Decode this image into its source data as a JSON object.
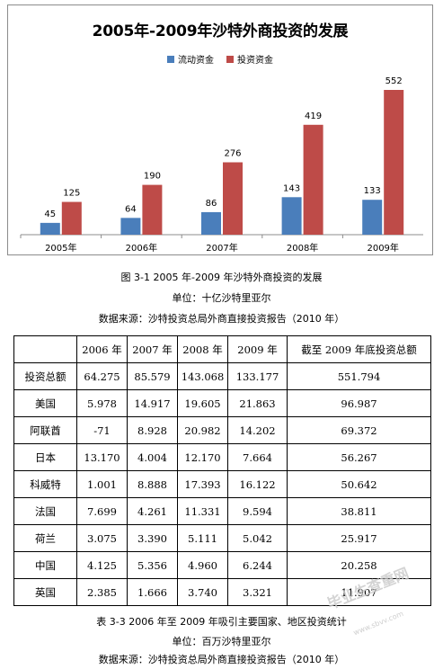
{
  "chart_data": {
    "type": "bar",
    "title": "2005年-2009年沙特外商投资的发展",
    "categories": [
      "2005年",
      "2006年",
      "2007年",
      "2008年",
      "2009年"
    ],
    "series": [
      {
        "name": "流动资金",
        "values": [
          45,
          64,
          86,
          143,
          133
        ],
        "color": "#4a7ebb"
      },
      {
        "name": "投资资金",
        "values": [
          125,
          190,
          276,
          419,
          552
        ],
        "color": "#be4b48"
      }
    ],
    "ylim": [
      0,
      600
    ],
    "grid": false,
    "legend": "top"
  },
  "figure_caption": "图 3-1 2005 年-2009 年沙特外商投资的发展",
  "figure_unit": "单位：十亿沙特里亚尔",
  "figure_source": "数据来源：沙特投资总局外商直接投资报告（2010 年）",
  "table": {
    "headers": [
      "",
      "2006 年",
      "2007 年",
      "2008 年",
      "2009 年",
      "截至 2009 年底投资总额"
    ],
    "rows": [
      [
        "投资总额",
        "64.275",
        "85.579",
        "143.068",
        "133.177",
        "551.794"
      ],
      [
        "美国",
        "5.978",
        "14.917",
        "19.605",
        "21.863",
        "96.987"
      ],
      [
        "阿联酋",
        "-71",
        "8.928",
        "20.982",
        "14.202",
        "69.372"
      ],
      [
        "日本",
        "13.170",
        "4.004",
        "12.170",
        "7.664",
        "56.267"
      ],
      [
        "科威特",
        "1.001",
        "8.888",
        "17.393",
        "16.122",
        "50.642"
      ],
      [
        "法国",
        "7.699",
        "4.261",
        "11.331",
        "9.594",
        "38.811"
      ],
      [
        "荷兰",
        "3.075",
        "3.390",
        "5.111",
        "5.042",
        "25.917"
      ],
      [
        "中国",
        "4.125",
        "5.356",
        "4.960",
        "6.244",
        "20.258"
      ],
      [
        "英国",
        "2.385",
        "1.666",
        "3.740",
        "3.321",
        "11.907"
      ]
    ]
  },
  "table_caption": "表 3-3 2006 年至 2009 年吸引主要国家、地区投资统计",
  "table_unit": "单位：百万沙特里亚尔",
  "table_source": "数据来源：沙特投资总局外商直接投资报告（2010 年）",
  "watermark": {
    "text": "毕业生查重网",
    "url": "www.sbvv.com"
  }
}
